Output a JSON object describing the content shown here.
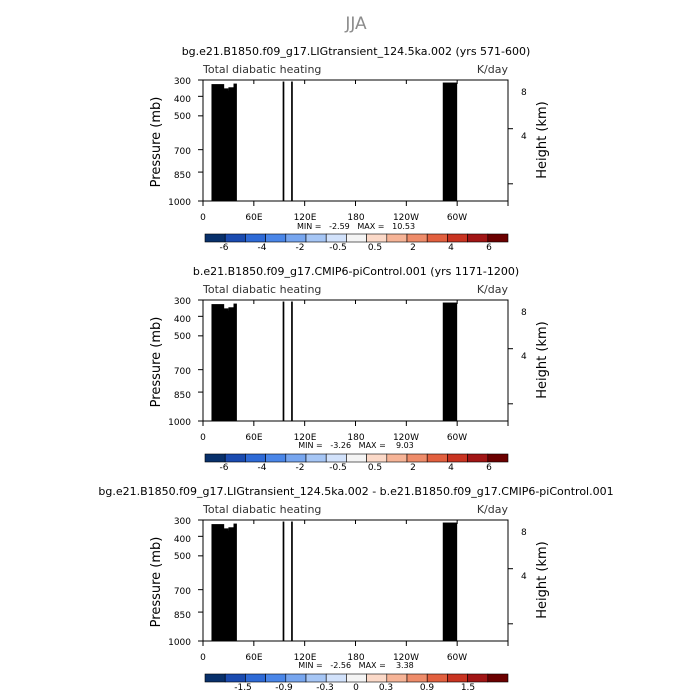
{
  "figure": {
    "title": "JJA"
  },
  "colors": {
    "panel_scale": [
      "#08306b",
      "#1a4bb0",
      "#2e6ad6",
      "#4a86e8",
      "#77a6ef",
      "#a6c6f5",
      "#d2e2fb",
      "#f4f4f4",
      "#fbd9c8",
      "#f6b497",
      "#ee8c6a",
      "#e2603f",
      "#c93421",
      "#a11515",
      "#6b0000"
    ],
    "terrain": "#000000"
  },
  "chart_data": [
    {
      "type": "heatmap",
      "title": "bg.e21.B1850.f09_g17.LIGtransient_124.5ka.002 (yrs 571-600)",
      "left_label": "Total diabatic heating",
      "right_label": "K/day",
      "ylabel": "Pressure (mb)",
      "ylabel_right": "Height (km)",
      "xtick_labels": [
        "0",
        "60E",
        "120E",
        "180",
        "120W",
        "60W"
      ],
      "ytick_labels": [
        "300",
        "400",
        "500",
        "700",
        "850",
        "1000"
      ],
      "ytick_right_labels": [
        "8",
        "4"
      ],
      "stats": "MIN =   -2.59   MAX =   10.53",
      "colorbar_labels": [
        "-6",
        "-4",
        "-2",
        "-0.5",
        "0.5",
        "2",
        "4",
        "6"
      ],
      "xlim": [
        0,
        360
      ],
      "ylim_mb": [
        1000,
        300
      ],
      "levels": [
        -7,
        -6,
        -5,
        -4,
        -3,
        -2,
        -1,
        -0.5,
        0.5,
        1,
        2,
        3,
        4,
        5,
        6,
        7
      ]
    },
    {
      "type": "heatmap",
      "title": "b.e21.B1850.f09_g17.CMIP6-piControl.001 (yrs 1171-1200)",
      "left_label": "Total diabatic heating",
      "right_label": "K/day",
      "ylabel": "Pressure (mb)",
      "ylabel_right": "Height (km)",
      "xtick_labels": [
        "0",
        "60E",
        "120E",
        "180",
        "120W",
        "60W"
      ],
      "ytick_labels": [
        "300",
        "400",
        "500",
        "700",
        "850",
        "1000"
      ],
      "ytick_right_labels": [
        "8",
        "4"
      ],
      "stats": "MIN =   -3.26   MAX =    9.03",
      "colorbar_labels": [
        "-6",
        "-4",
        "-2",
        "-0.5",
        "0.5",
        "2",
        "4",
        "6"
      ],
      "xlim": [
        0,
        360
      ],
      "ylim_mb": [
        1000,
        300
      ],
      "levels": [
        -7,
        -6,
        -5,
        -4,
        -3,
        -2,
        -1,
        -0.5,
        0.5,
        1,
        2,
        3,
        4,
        5,
        6,
        7
      ]
    },
    {
      "type": "heatmap",
      "title": "bg.e21.B1850.f09_g17.LIGtransient_124.5ka.002 - b.e21.B1850.f09_g17.CMIP6-piControl.001",
      "left_label": "Total diabatic heating",
      "right_label": "K/day",
      "ylabel": "Pressure (mb)",
      "ylabel_right": "Height (km)",
      "xtick_labels": [
        "0",
        "60E",
        "120E",
        "180",
        "120W",
        "60W"
      ],
      "ytick_labels": [
        "300",
        "400",
        "500",
        "700",
        "850",
        "1000"
      ],
      "ytick_right_labels": [
        "8",
        "4"
      ],
      "stats": "MIN =   -2.56   MAX =    3.38",
      "colorbar_labels": [
        "-1.5",
        "-0.9",
        "-0.3",
        "0",
        "0.3",
        "0.9",
        "1.5"
      ],
      "xlim": [
        0,
        360
      ],
      "ylim_mb": [
        1000,
        300
      ],
      "levels": [
        -2.1,
        -1.8,
        -1.5,
        -1.2,
        -0.9,
        -0.6,
        -0.3,
        0,
        0.3,
        0.6,
        0.9,
        1.2,
        1.5,
        1.8,
        2.1
      ]
    }
  ]
}
